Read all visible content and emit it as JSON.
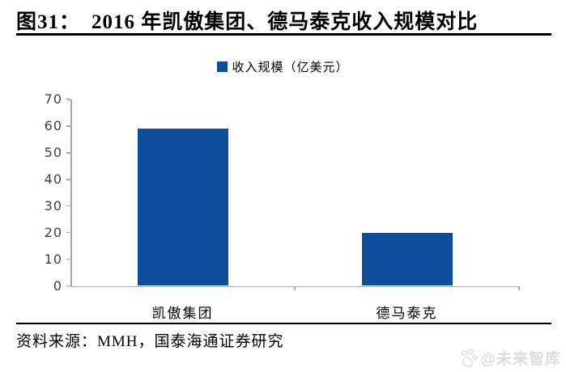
{
  "header": {
    "figure_label": "图31：",
    "title": "2016 年凯傲集团、德马泰克收入规模对比"
  },
  "legend": {
    "label": "收入规模（亿美元）"
  },
  "chart_data": {
    "type": "bar",
    "title": "2016 年凯傲集团、德马泰克收入规模对比",
    "categories": [
      "凯傲集团",
      "德马泰克"
    ],
    "series": [
      {
        "name": "收入规模（亿美元）",
        "values": [
          59,
          20
        ]
      }
    ],
    "xlabel": "",
    "ylabel": "",
    "ylim": [
      0,
      70
    ],
    "ytick_step": 10,
    "yticks": [
      0,
      10,
      20,
      30,
      40,
      50,
      60,
      70
    ],
    "grid": false,
    "legend_position": "top-center"
  },
  "footer": {
    "source": "资料来源：MMH，国泰海通证券研究"
  },
  "watermark": {
    "handle": "@未来智库",
    "icon": "paw-icon"
  },
  "colors": {
    "bar": "#0D4E9B",
    "axis": "#A9A9A9",
    "tick_label": "#3F3F3F",
    "text": "#000000",
    "watermark": "#DBDBDB",
    "background": "#FFFFFF"
  }
}
